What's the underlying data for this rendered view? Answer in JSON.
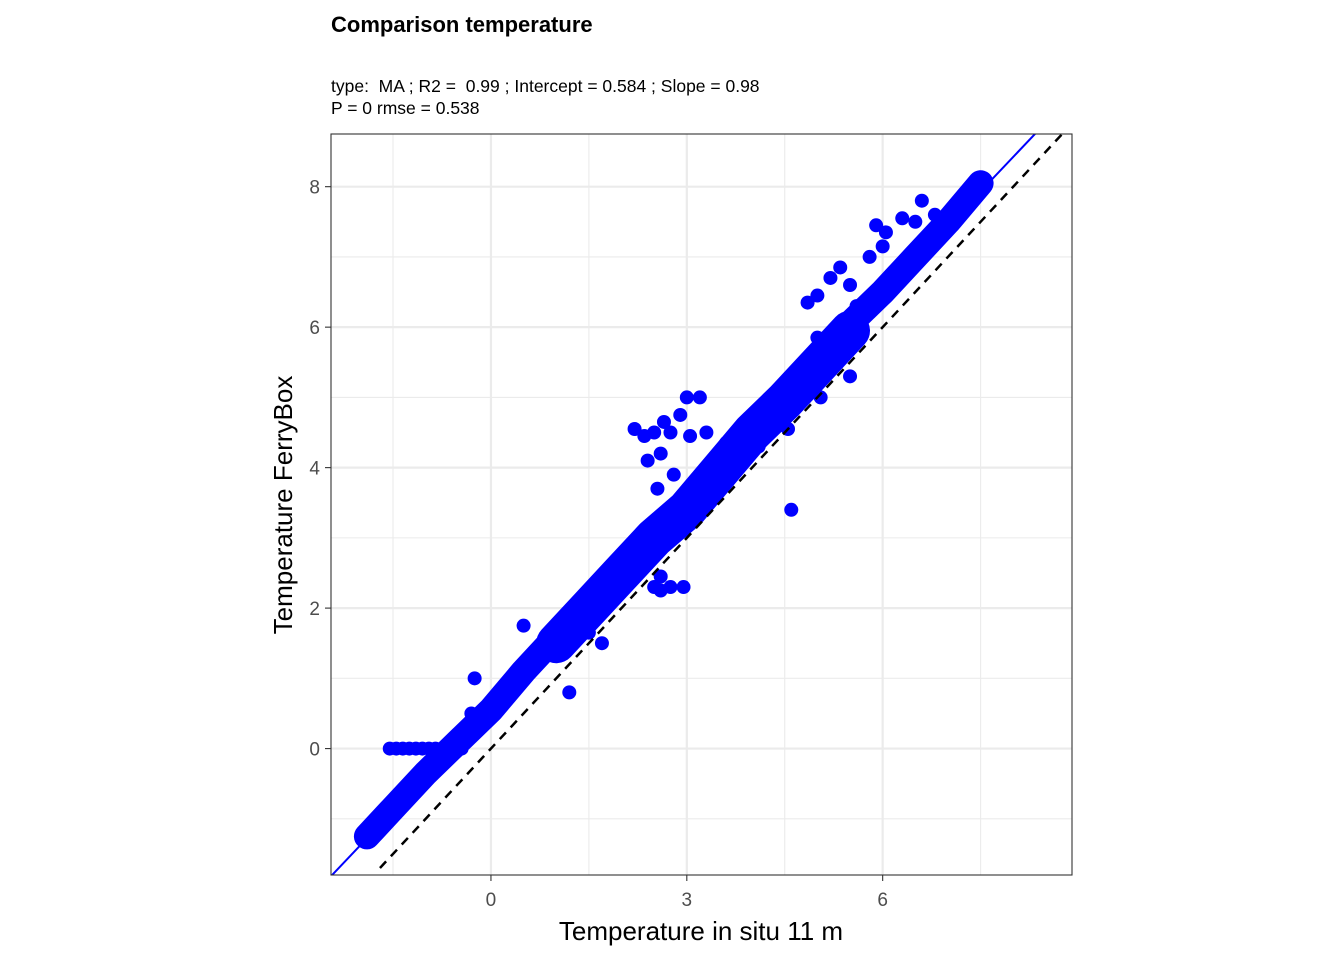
{
  "chart_data": {
    "type": "scatter",
    "title": "Comparison temperature",
    "subtitle": [
      "type:  MA ; R2 =  0.99 ; Intercept = 0.584 ; Slope = 0.98",
      "P = 0 rmse = 0.538"
    ],
    "xlabel": "Temperature in situ 11 m",
    "ylabel": "Temperature FerryBox",
    "xlim": [
      -2.45,
      8.9
    ],
    "ylim": [
      -1.8,
      8.75
    ],
    "x_ticks": [
      0,
      3,
      6
    ],
    "x_tick_labels": [
      "0",
      "3",
      "6"
    ],
    "y_ticks": [
      0,
      2,
      4,
      6,
      8
    ],
    "y_tick_labels": [
      "0",
      "2",
      "4",
      "6",
      "8"
    ],
    "grid": true,
    "point_color": "#0000FF",
    "fit_line": {
      "intercept": 0.584,
      "slope": 0.98,
      "color": "#0000FF",
      "style": "solid"
    },
    "reference_line": {
      "intercept": 0,
      "slope": 1,
      "color": "#000000",
      "style": "dashed"
    },
    "dense_band": {
      "x_range": [
        -1.9,
        7.5
      ],
      "description_points": [
        [
          -1.9,
          -1.25
        ],
        [
          -1.5,
          -0.85
        ],
        [
          -1.0,
          -0.35
        ],
        [
          -0.5,
          0.1
        ],
        [
          0.0,
          0.55
        ],
        [
          0.5,
          1.1
        ],
        [
          1.0,
          1.6
        ],
        [
          1.5,
          2.1
        ],
        [
          2.0,
          2.6
        ],
        [
          2.5,
          3.1
        ],
        [
          3.0,
          3.5
        ],
        [
          3.5,
          4.05
        ],
        [
          4.0,
          4.6
        ],
        [
          4.5,
          5.05
        ],
        [
          5.0,
          5.55
        ],
        [
          5.5,
          6.05
        ],
        [
          6.0,
          6.5
        ],
        [
          6.5,
          7.0
        ],
        [
          7.0,
          7.5
        ],
        [
          7.5,
          8.05
        ]
      ]
    },
    "points": [
      [
        -1.55,
        0.0
      ],
      [
        -1.45,
        0.0
      ],
      [
        -1.35,
        0.0
      ],
      [
        -1.25,
        0.0
      ],
      [
        -1.15,
        0.0
      ],
      [
        -1.05,
        0.0
      ],
      [
        -0.95,
        0.0
      ],
      [
        -0.85,
        0.0
      ],
      [
        -0.75,
        0.0
      ],
      [
        -0.65,
        0.0
      ],
      [
        -0.55,
        0.0
      ],
      [
        -0.45,
        0.0
      ],
      [
        1.2,
        0.8
      ],
      [
        0.5,
        1.75
      ],
      [
        -0.25,
        1.0
      ],
      [
        -0.3,
        0.5
      ],
      [
        2.2,
        4.55
      ],
      [
        2.35,
        4.45
      ],
      [
        2.5,
        4.5
      ],
      [
        2.65,
        4.65
      ],
      [
        2.9,
        4.75
      ],
      [
        3.0,
        5.0
      ],
      [
        3.2,
        5.0
      ],
      [
        2.75,
        4.5
      ],
      [
        3.05,
        4.45
      ],
      [
        3.3,
        4.5
      ],
      [
        2.6,
        4.2
      ],
      [
        2.4,
        4.1
      ],
      [
        2.8,
        3.9
      ],
      [
        2.55,
        3.7
      ],
      [
        2.5,
        2.3
      ],
      [
        2.6,
        2.25
      ],
      [
        2.75,
        2.3
      ],
      [
        2.95,
        2.3
      ],
      [
        2.6,
        2.45
      ],
      [
        1.7,
        1.5
      ],
      [
        1.5,
        1.65
      ],
      [
        4.6,
        3.4
      ],
      [
        4.2,
        4.8
      ],
      [
        4.55,
        4.55
      ],
      [
        5.05,
        5.0
      ],
      [
        4.8,
        5.3
      ],
      [
        5.5,
        5.3
      ],
      [
        4.85,
        6.35
      ],
      [
        5.0,
        6.45
      ],
      [
        5.2,
        6.7
      ],
      [
        5.35,
        6.85
      ],
      [
        5.5,
        6.6
      ],
      [
        5.6,
        6.3
      ],
      [
        5.9,
        7.45
      ],
      [
        6.05,
        7.35
      ],
      [
        6.3,
        7.55
      ],
      [
        6.5,
        7.5
      ],
      [
        6.0,
        7.15
      ],
      [
        5.8,
        7.0
      ],
      [
        6.6,
        7.8
      ],
      [
        6.8,
        7.6
      ],
      [
        5.0,
        5.85
      ],
      [
        3.8,
        4.4
      ],
      [
        4.1,
        4.3
      ],
      [
        3.6,
        4.35
      ]
    ]
  }
}
